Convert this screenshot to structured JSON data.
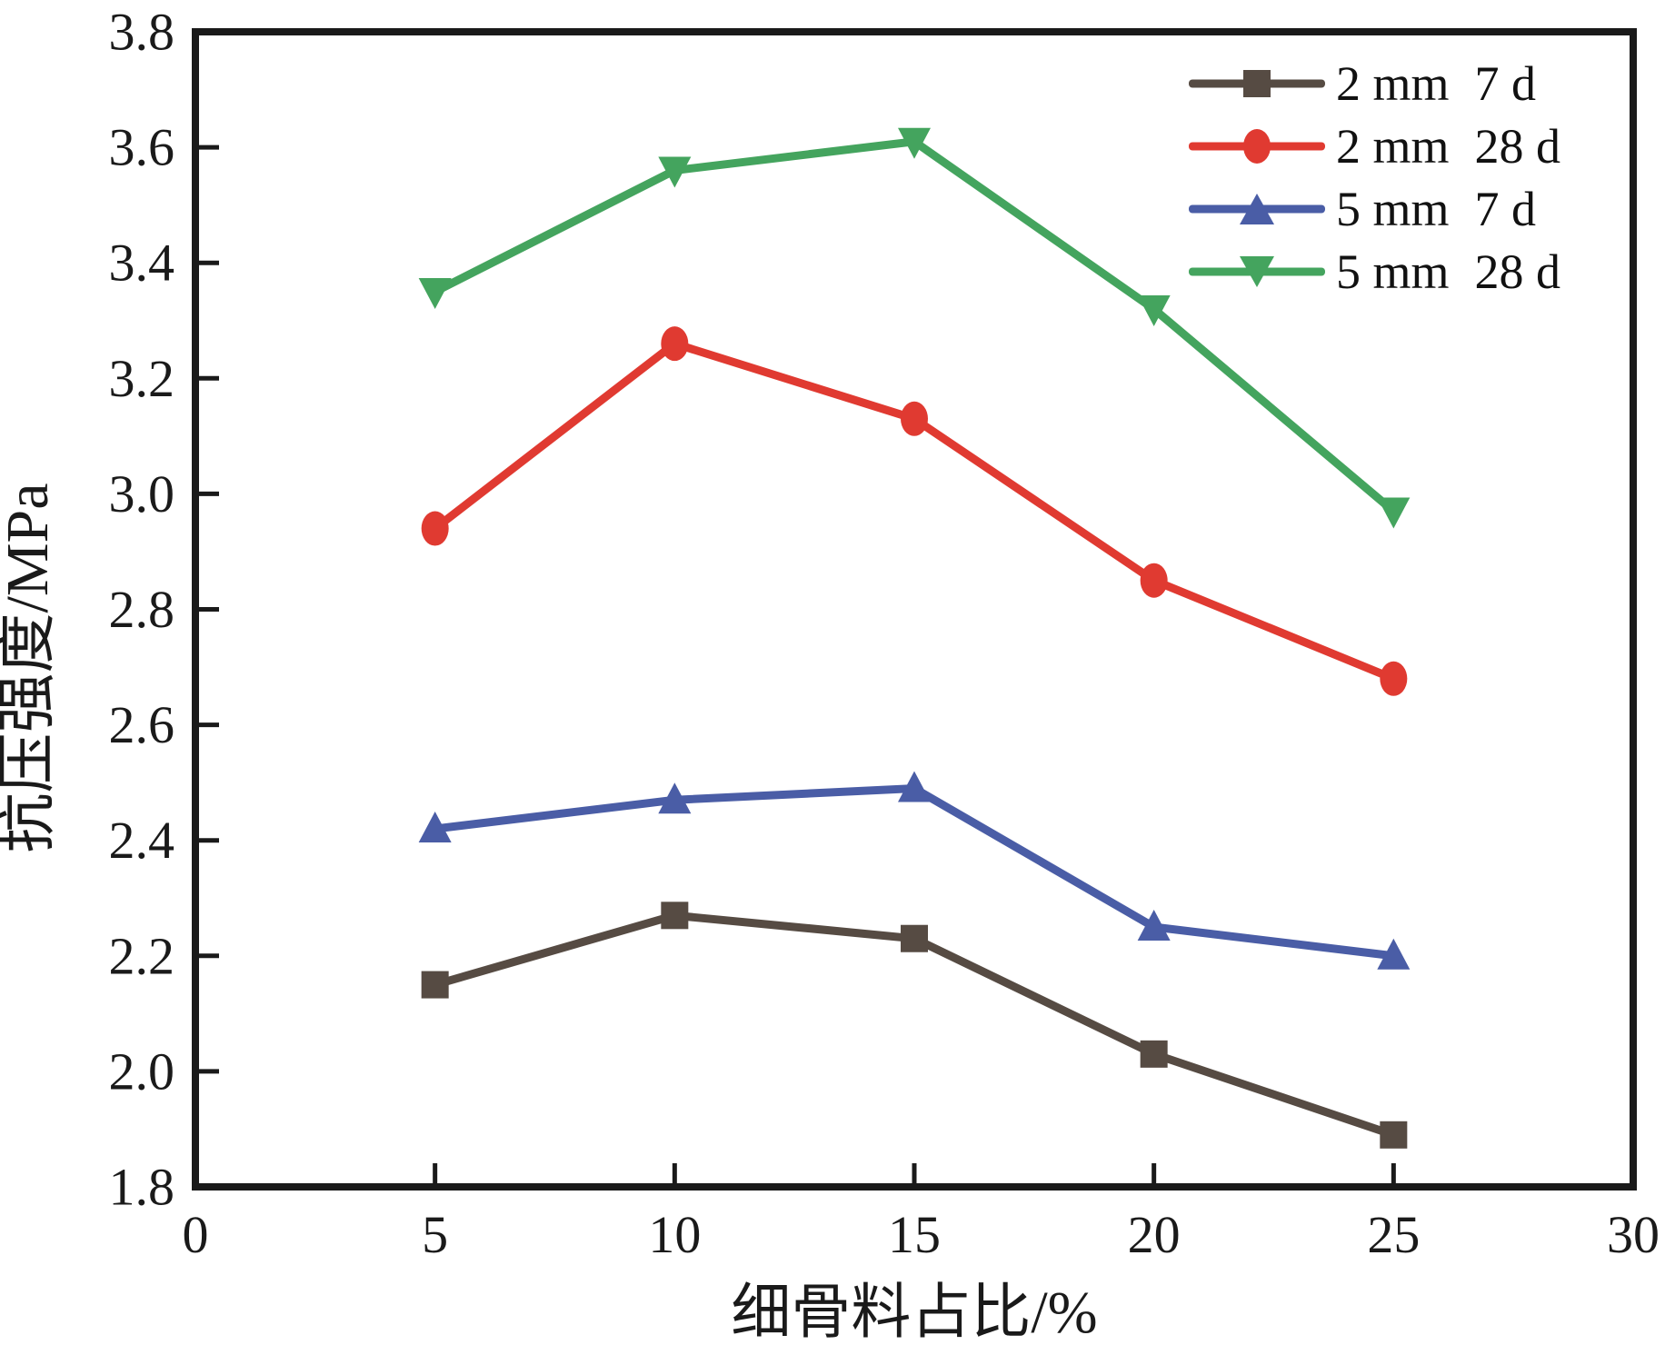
{
  "figure": {
    "background": "#ffffff",
    "axis_color": "#1a1a1a"
  },
  "chart_data": {
    "type": "line",
    "title": "",
    "xlabel": "细骨料占比/%",
    "ylabel": "抗压强度/MPa",
    "xlim": [
      0,
      30
    ],
    "ylim": [
      1.8,
      3.8
    ],
    "xticks": [
      0,
      5,
      10,
      15,
      20,
      25,
      30
    ],
    "yticks": [
      1.8,
      2.0,
      2.2,
      2.4,
      2.6,
      2.8,
      3.0,
      3.2,
      3.4,
      3.6,
      3.8
    ],
    "grid": false,
    "legend_position": "inside-top-right",
    "x": [
      5,
      10,
      15,
      20,
      25
    ],
    "series": [
      {
        "size": "2 mm",
        "duration": "7 d",
        "marker": "square",
        "color": "#564b43",
        "values": [
          2.15,
          2.27,
          2.23,
          2.03,
          1.89
        ]
      },
      {
        "size": "2 mm",
        "duration": "28 d",
        "marker": "circle",
        "color": "#e03a31",
        "values": [
          2.94,
          3.26,
          3.13,
          2.85,
          2.68
        ]
      },
      {
        "size": "5 mm",
        "duration": "7 d",
        "marker": "triangle-up",
        "color": "#4a5da6",
        "values": [
          2.42,
          2.47,
          2.49,
          2.25,
          2.2
        ]
      },
      {
        "size": "5 mm",
        "duration": "28 d",
        "marker": "triangle-down",
        "color": "#44a45e",
        "values": [
          3.35,
          3.56,
          3.61,
          3.32,
          2.97
        ]
      }
    ]
  }
}
